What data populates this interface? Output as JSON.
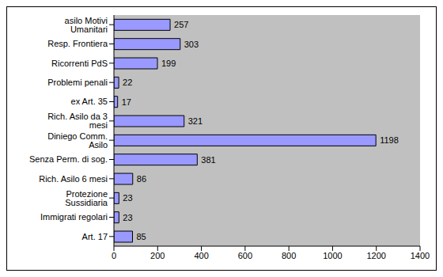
{
  "chart_data": {
    "type": "bar",
    "orientation": "horizontal",
    "categories": [
      "asilo Motivi Umanitari",
      "Resp. Frontiera",
      "Ricorrenti PdS",
      "Problemi penali",
      "ex Art. 35",
      "Rich. Asilo da 3 mesi",
      "Diniego Comm. Asilo",
      "Senza Perm. di sog.",
      "Rich. Asilo 6 mesi",
      "Protezione Sussidiaria",
      "Immigrati regolari",
      "Art. 17"
    ],
    "values": [
      257,
      303,
      199,
      22,
      17,
      321,
      1198,
      381,
      86,
      23,
      23,
      85
    ],
    "color": "#9999ff",
    "xlim": [
      0,
      1400
    ],
    "xticks": [
      0,
      200,
      400,
      600,
      800,
      1000,
      1200,
      1400
    ],
    "grid": false,
    "data_labels": true
  }
}
